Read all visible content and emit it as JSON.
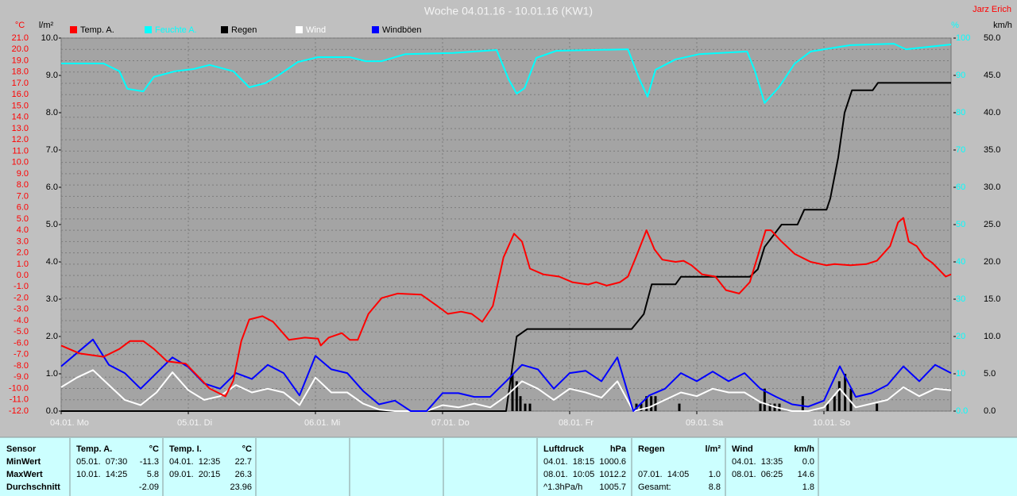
{
  "chart_data": {
    "type": "line",
    "title": "Woche 04.01.16 - 10.01.16 (KW1)",
    "credit": "Jarz Erich",
    "ylabel": "°C",
    "y2label": "l/m²",
    "y3label": "%",
    "y4label": "km/h",
    "grid": true,
    "xlim": [
      0,
      168
    ],
    "xticks": [
      {
        "value": 0,
        "label": "04.01. Mo"
      },
      {
        "value": 24,
        "label": "05.01. Di"
      },
      {
        "value": 48,
        "label": "06.01. Mi"
      },
      {
        "value": 72,
        "label": "07.01. Do"
      },
      {
        "value": 96,
        "label": "08.01. Fr"
      },
      {
        "value": 120,
        "label": "09.01. Sa"
      },
      {
        "value": 144,
        "label": "10.01. So"
      }
    ],
    "ylim": [
      -12,
      21
    ],
    "yticks": [
      {
        "value": -12,
        "label": "-12.0"
      },
      {
        "value": -11,
        "label": "-11.0"
      },
      {
        "value": -10,
        "label": "-10.0"
      },
      {
        "value": -9,
        "label": "-9.0"
      },
      {
        "value": -8,
        "label": "-8.0"
      },
      {
        "value": -7,
        "label": "-7.0"
      },
      {
        "value": -6,
        "label": "-6.0"
      },
      {
        "value": -5,
        "label": "-5.0"
      },
      {
        "value": -4,
        "label": "-4.0"
      },
      {
        "value": -3,
        "label": "-3.0"
      },
      {
        "value": -2,
        "label": "-2.0"
      },
      {
        "value": -1,
        "label": "-1.0"
      },
      {
        "value": 0,
        "label": "0.0"
      },
      {
        "value": 1,
        "label": "1.0"
      },
      {
        "value": 2,
        "label": "2.0"
      },
      {
        "value": 3,
        "label": "3.0"
      },
      {
        "value": 4,
        "label": "4.0"
      },
      {
        "value": 5,
        "label": "5.0"
      },
      {
        "value": 6,
        "label": "6.0"
      },
      {
        "value": 7,
        "label": "7.0"
      },
      {
        "value": 8,
        "label": "8.0"
      },
      {
        "value": 9,
        "label": "9.0"
      },
      {
        "value": 10,
        "label": "10.0"
      },
      {
        "value": 11,
        "label": "11.0"
      },
      {
        "value": 12,
        "label": "12.0"
      },
      {
        "value": 13,
        "label": "13.0"
      },
      {
        "value": 14,
        "label": "14.0"
      },
      {
        "value": 15,
        "label": "15.0"
      },
      {
        "value": 16,
        "label": "16.0"
      },
      {
        "value": 17,
        "label": "17.0"
      },
      {
        "value": 18,
        "label": "18.0"
      },
      {
        "value": 19,
        "label": "19.0"
      },
      {
        "value": 20,
        "label": "20.0"
      },
      {
        "value": 21,
        "label": "21.0"
      }
    ],
    "y2lim": [
      0,
      10
    ],
    "y2ticks": [
      {
        "value": 0,
        "label": "0.0"
      },
      {
        "value": 1,
        "label": "1.0"
      },
      {
        "value": 2,
        "label": "2.0"
      },
      {
        "value": 3,
        "label": "3.0"
      },
      {
        "value": 4,
        "label": "4.0"
      },
      {
        "value": 5,
        "label": "5.0"
      },
      {
        "value": 6,
        "label": "6.0"
      },
      {
        "value": 7,
        "label": "7.0"
      },
      {
        "value": 8,
        "label": "8.0"
      },
      {
        "value": 9,
        "label": "9.0"
      },
      {
        "value": 10,
        "label": "10.0"
      }
    ],
    "y3lim": [
      0,
      100
    ],
    "y3ticks": [
      {
        "value": 0,
        "label": "0.0"
      },
      10,
      20,
      30,
      40,
      50,
      60,
      70,
      80,
      90,
      100
    ],
    "y4lim": [
      0,
      50
    ],
    "y4ticks": [
      {
        "value": 0,
        "label": "0.0"
      },
      {
        "value": 5,
        "label": "5.0"
      },
      {
        "value": 10,
        "label": "10.0"
      },
      {
        "value": 15,
        "label": "15.0"
      },
      {
        "value": 20,
        "label": "20.0"
      },
      {
        "value": 25,
        "label": "25.0"
      },
      {
        "value": 30,
        "label": "30.0"
      },
      {
        "value": 35,
        "label": "35.0"
      },
      {
        "value": 40,
        "label": "40.0"
      },
      {
        "value": 45,
        "label": "45.0"
      },
      {
        "value": 50,
        "label": "50.0"
      }
    ],
    "series": [
      {
        "name": "Temp. A.",
        "color": "#ff0000",
        "axis": "y",
        "x": [
          0,
          3.5,
          8,
          11,
          13,
          15.5,
          17.5,
          20,
          23.5,
          26,
          28,
          31,
          32.5,
          34,
          35.5,
          38,
          40,
          43,
          46,
          48.5,
          49,
          50.5,
          53,
          54.5,
          56,
          58,
          60.5,
          63.5,
          68,
          71,
          73,
          75.5,
          77.5,
          79.5,
          81.5,
          83.5,
          85.5,
          87,
          88.5,
          91,
          94,
          96.5,
          99.5,
          101,
          103,
          105.5,
          107,
          108.5,
          110.5,
          112,
          113.5,
          116,
          117.5,
          119,
          121,
          123.5,
          125.5,
          128,
          130,
          133,
          134,
          136,
          138.5,
          141.5,
          144.5,
          146,
          149,
          152,
          154,
          156.5,
          158,
          159,
          160,
          161.5,
          163,
          164.5,
          167,
          168
        ],
        "values": [
          -6.2,
          -6.9,
          -7.2,
          -6.5,
          -5.8,
          -5.8,
          -6.5,
          -7.6,
          -7.8,
          -9.0,
          -10.0,
          -10.7,
          -9.3,
          -5.8,
          -3.9,
          -3.6,
          -4.1,
          -5.7,
          -5.5,
          -5.6,
          -6.2,
          -5.5,
          -5.1,
          -5.7,
          -5.7,
          -3.4,
          -2.0,
          -1.6,
          -1.7,
          -2.7,
          -3.4,
          -3.2,
          -3.4,
          -4.1,
          -2.7,
          1.6,
          3.7,
          3.0,
          0.6,
          0.1,
          -0.1,
          -0.6,
          -0.8,
          -0.6,
          -0.9,
          -0.6,
          -0.1,
          1.6,
          4.0,
          2.3,
          1.4,
          1.2,
          1.3,
          0.9,
          0.1,
          -0.1,
          -1.3,
          -1.6,
          -0.6,
          4.0,
          4.0,
          3.0,
          1.9,
          1.2,
          0.9,
          1.0,
          0.9,
          1.0,
          1.3,
          2.6,
          4.7,
          5.1,
          3.0,
          2.6,
          1.6,
          1.1,
          -0.1,
          0.1
        ]
      },
      {
        "name": "Feuchte A.",
        "color": "#00ffff",
        "axis": "y3",
        "x": [
          0,
          8,
          11,
          12.5,
          15.5,
          17.5,
          21.5,
          25,
          28,
          32.5,
          35.5,
          38.5,
          41,
          44.7,
          48.5,
          54.5,
          57.5,
          60.5,
          65,
          74,
          82.2,
          84.5,
          86,
          87.5,
          89.7,
          93.5,
          107,
          109.2,
          110.7,
          112.2,
          116,
          120.5,
          129.5,
          131,
          132.8,
          135.5,
          138.5,
          141.5,
          149,
          157.2,
          159.5,
          168
        ],
        "values": [
          93.2,
          93.2,
          91.1,
          86.4,
          85.7,
          89.6,
          91.1,
          91.7,
          92.8,
          91.1,
          86.8,
          87.9,
          90.0,
          93.6,
          94.9,
          94.9,
          93.8,
          93.8,
          95.7,
          96.0,
          96.8,
          88.9,
          85.1,
          86.6,
          94.7,
          96.6,
          97.0,
          88.9,
          84.3,
          91.5,
          94.3,
          95.7,
          96.4,
          91.1,
          82.6,
          86.8,
          93.2,
          96.4,
          98.1,
          98.5,
          97.0,
          98.3
        ]
      },
      {
        "name": "Regen",
        "color": "#000000",
        "axis": "y2",
        "x": [
          0,
          84,
          86,
          88,
          107.7,
          110,
          111.5,
          116,
          117,
          130,
          131.5,
          132.8,
          136,
          139,
          140.3,
          144.5,
          145.2,
          146.7,
          147.9,
          149.3,
          153.2,
          154.2,
          168
        ],
        "values": [
          0,
          0,
          2.0,
          2.2,
          2.2,
          2.6,
          3.4,
          3.4,
          3.6,
          3.6,
          3.8,
          4.4,
          5.0,
          5.0,
          5.4,
          5.4,
          5.7,
          6.8,
          8.0,
          8.6,
          8.6,
          8.8,
          8.8
        ]
      },
      {
        "name": "Wind",
        "color": "#ffffff",
        "axis": "y4",
        "x": [
          0,
          3,
          6,
          9,
          12,
          15,
          18,
          21,
          24,
          27,
          30,
          33,
          36,
          39,
          42,
          45,
          48,
          51,
          54,
          57,
          60,
          63,
          66,
          69,
          72,
          75,
          78,
          81,
          84,
          87,
          90,
          93,
          96,
          99,
          102,
          105,
          108,
          111,
          114,
          117,
          120,
          123,
          126,
          129,
          132,
          135,
          138,
          141,
          144,
          147,
          150,
          153,
          156,
          159,
          162,
          165,
          168
        ],
        "values": [
          3.2,
          4.5,
          5.5,
          3.5,
          1.5,
          0.8,
          2.5,
          5.2,
          2.8,
          1.5,
          2.0,
          3.5,
          2.5,
          3.0,
          2.5,
          0.8,
          4.5,
          2.5,
          2.5,
          1.0,
          0.2,
          0,
          0,
          0,
          0.8,
          0.5,
          1.0,
          0.5,
          2.0,
          4.0,
          3.0,
          1.5,
          3.0,
          2.5,
          1.8,
          4.0,
          0,
          0.5,
          1.5,
          2.5,
          2.0,
          3.0,
          2.5,
          2.5,
          1.2,
          0.5,
          0,
          0,
          0.5,
          3.0,
          0.5,
          1.0,
          1.5,
          3.2,
          2.0,
          3.0,
          2.8
        ]
      },
      {
        "name": "Windböen",
        "color": "#0000ff",
        "axis": "y4",
        "x": [
          0,
          3,
          6,
          9,
          12,
          15,
          18,
          21,
          24,
          27,
          30,
          33,
          36,
          39,
          42,
          45,
          48,
          51,
          54,
          57,
          60,
          63,
          66,
          69,
          72,
          75,
          78,
          81,
          84,
          87,
          90,
          93,
          96,
          99,
          102,
          105,
          108,
          111,
          114,
          117,
          120,
          123,
          126,
          129,
          132,
          135,
          138,
          141,
          144,
          147,
          150,
          153,
          156,
          159,
          162,
          165,
          168
        ],
        "values": [
          6.0,
          7.8,
          9.6,
          6.2,
          5.1,
          3.0,
          5.1,
          7.2,
          5.9,
          3.7,
          3.0,
          5.1,
          4.3,
          6.2,
          5.1,
          2.1,
          7.4,
          5.6,
          5.1,
          2.7,
          0.9,
          1.4,
          0,
          0,
          2.4,
          2.4,
          1.9,
          1.9,
          4.0,
          6.2,
          5.6,
          3.0,
          5.1,
          5.4,
          4.0,
          7.2,
          0,
          2.1,
          3.0,
          5.1,
          4.0,
          5.3,
          4.0,
          5.1,
          3.0,
          1.9,
          0.9,
          0.6,
          1.4,
          6.0,
          1.9,
          2.4,
          3.5,
          6.0,
          4.0,
          6.2,
          5.1
        ]
      }
    ],
    "rain_bars": {
      "color": "#000000",
      "axis": "y2",
      "x": [
        85.2,
        86,
        86.7,
        87.6,
        88.5,
        108.6,
        109.5,
        110.5,
        111.4,
        112.2,
        116.7,
        132,
        132.8,
        133.8,
        134.7,
        135.6,
        140,
        144.7,
        146,
        146.9,
        148,
        149.1,
        154
      ],
      "values": [
        1.0,
        0.8,
        0.4,
        0.2,
        0.2,
        0.2,
        0.2,
        0.4,
        0.4,
        0.4,
        0.2,
        0.2,
        0.6,
        0.2,
        0.2,
        0.2,
        0.4,
        0.2,
        0.4,
        0.8,
        1.0,
        0.6,
        0.2
      ]
    }
  },
  "stats": {
    "row_labels": [
      "Sensor",
      "MinWert",
      "MaxWert",
      "Durchschnitt"
    ],
    "blocks": [
      {
        "name": "Temp. A.",
        "unit": "°C",
        "rows": [
          [
            "05.01.  07:30",
            "-11.3"
          ],
          [
            "10.01.  14:25",
            "5.8"
          ],
          [
            null,
            "-2.09"
          ]
        ]
      },
      {
        "name": "Temp. I.",
        "unit": "°C",
        "rows": [
          [
            "04.01.  12:35",
            "22.7"
          ],
          [
            "09.01.  20:15",
            "26.3"
          ],
          [
            null,
            "23.96"
          ]
        ]
      },
      {
        "name": "Luftdruck",
        "unit": "hPa",
        "rows": [
          [
            "04.01.  18:15",
            "1000.6"
          ],
          [
            "08.01.  10:05",
            "1012.2"
          ],
          [
            "^1.3hPa/h",
            "1005.7"
          ]
        ]
      },
      {
        "name": "Regen",
        "unit": "l/m²",
        "rows": [
          [
            null,
            null
          ],
          [
            "07.01.  14:05",
            "1.0"
          ],
          [
            "Gesamt:",
            "8.8"
          ]
        ]
      },
      {
        "name": "Wind",
        "unit": "km/h",
        "rows": [
          [
            "04.01.  13:35",
            "0.0"
          ],
          [
            "08.01.  06:25",
            "14.6"
          ],
          [
            null,
            "1.8"
          ]
        ]
      }
    ]
  }
}
